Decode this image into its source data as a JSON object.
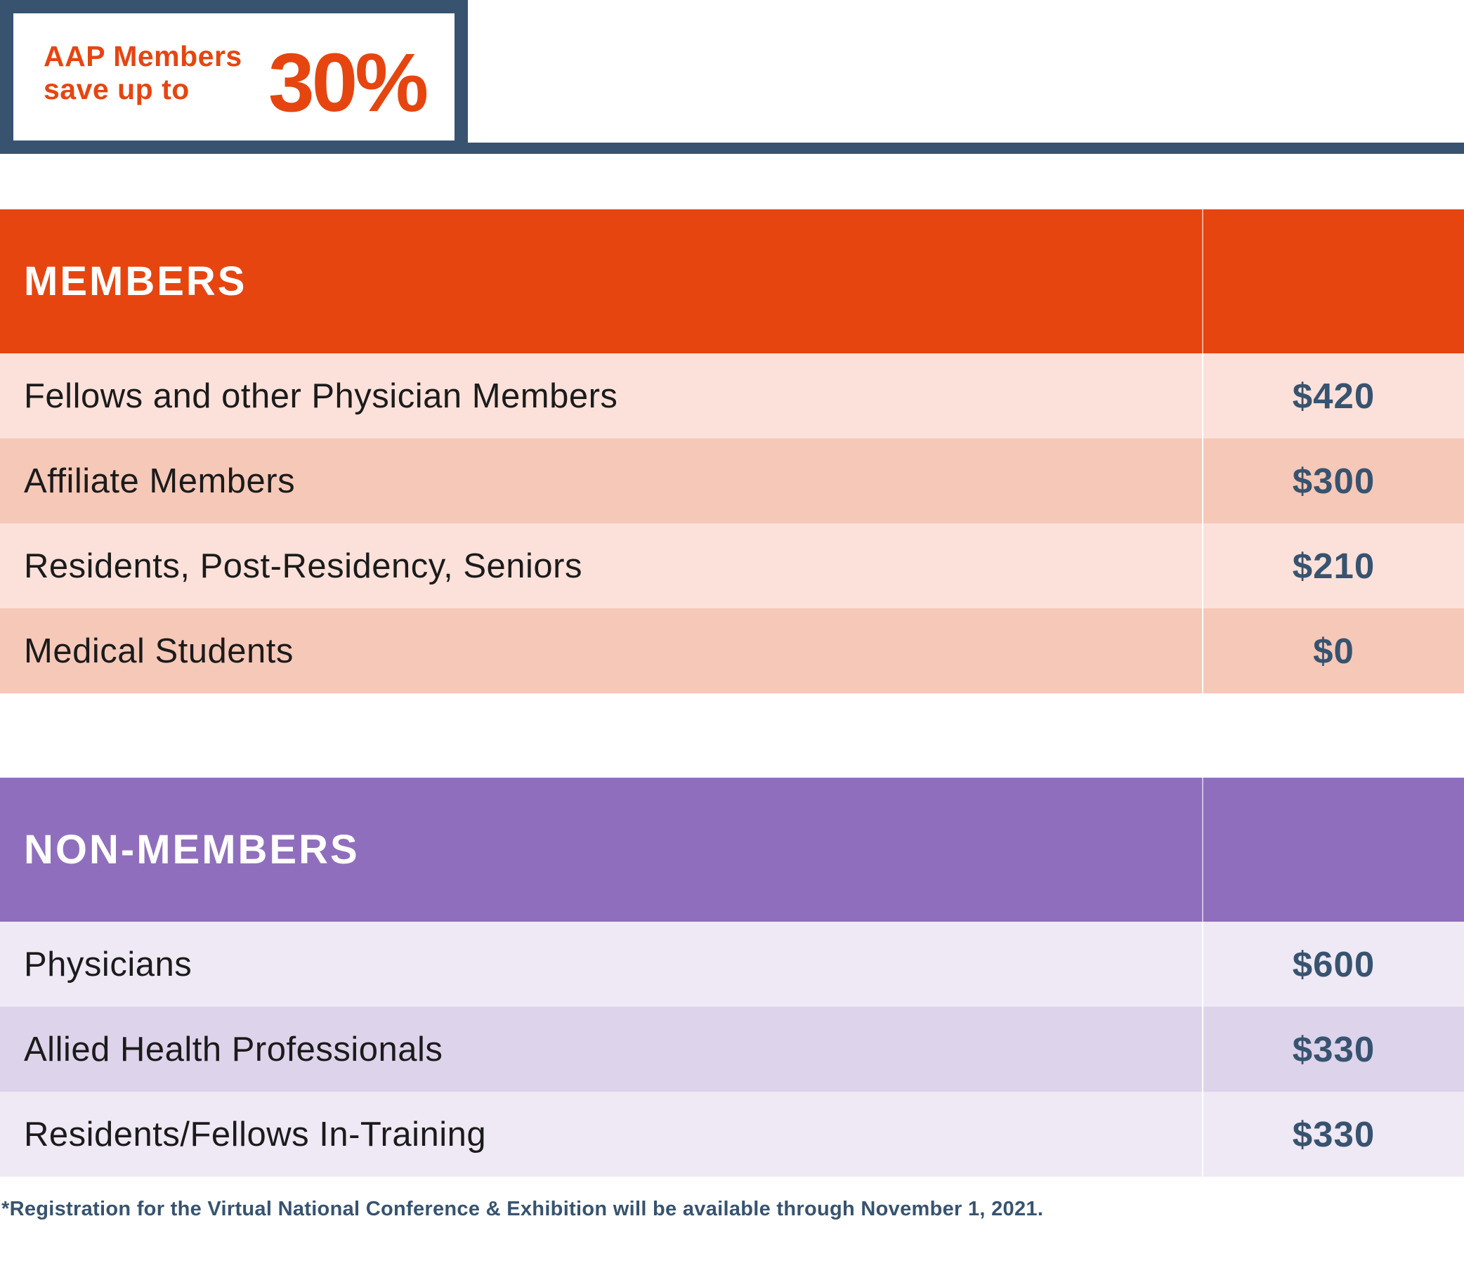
{
  "badge": {
    "line1": "AAP Members",
    "line2": "save up to",
    "percent": "30%"
  },
  "members": {
    "title": "MEMBERS",
    "rows": [
      {
        "label": "Fellows and other Physician Members",
        "price": "$420"
      },
      {
        "label": "Affiliate Members",
        "price": "$300"
      },
      {
        "label": "Residents, Post-Residency, Seniors",
        "price": "$210"
      },
      {
        "label": "Medical Students",
        "price": "$0"
      }
    ]
  },
  "nonmembers": {
    "title": "NON-MEMBERS",
    "rows": [
      {
        "label": "Physicians",
        "price": "$600"
      },
      {
        "label": "Allied Health Professionals",
        "price": "$330"
      },
      {
        "label": "Residents/Fellows In-Training",
        "price": "$330"
      }
    ]
  },
  "footnote": "*Registration for the Virtual National Conference & Exhibition will be available through November 1, 2021.",
  "colors": {
    "accent_orange": "#e64510",
    "accent_purple": "#8f6fbd",
    "navy": "#37536f"
  }
}
